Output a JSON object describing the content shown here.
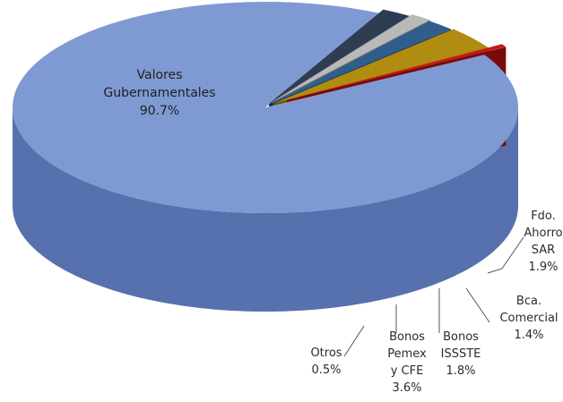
{
  "chart_data": {
    "type": "pie",
    "title": "",
    "slices": [
      {
        "label": [
          "Valores",
          "Gubernamentales"
        ],
        "value_text": "90.7%",
        "value": 90.7,
        "color": "#7f9ad3",
        "side": "#5671ad"
      },
      {
        "label": [
          "Fdo.",
          "Ahorro",
          "SAR"
        ],
        "value_text": "1.9%",
        "value": 1.9,
        "color": "#2f3d52",
        "side": "#1e2736"
      },
      {
        "label": [
          "Bca.",
          "Comercial"
        ],
        "value_text": "1.4%",
        "value": 1.4,
        "color": "#b9b9b9",
        "side": "#6d6d6d"
      },
      {
        "label": [
          "Bonos",
          "ISSSTE"
        ],
        "value_text": "1.8%",
        "value": 1.8,
        "color": "#2f5e8c",
        "side": "#1b3a59"
      },
      {
        "label": [
          "Bonos",
          "Pemex",
          "y CFE"
        ],
        "value_text": "3.6%",
        "value": 3.6,
        "color": "#b08c10",
        "side": "#6e5600"
      },
      {
        "label": [
          "Otros"
        ],
        "value_text": "0.5%",
        "value": 0.5,
        "color": "#c21a1a",
        "side": "#7a0a0a"
      }
    ]
  }
}
